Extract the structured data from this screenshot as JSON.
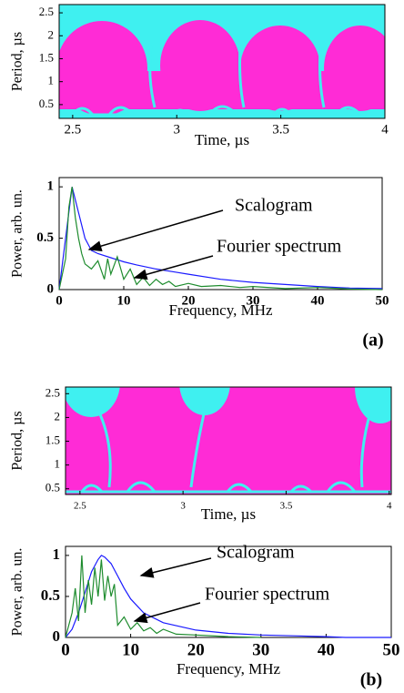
{
  "chart_data": [
    {
      "type": "heatmap",
      "xlabel": "Time, µs",
      "ylabel": "Period, µs",
      "xlim": [
        2.435,
        4
      ],
      "ylim": [
        0.2,
        2.68
      ],
      "xticks": [
        2.5,
        3,
        3.5,
        4
      ],
      "yticks": [
        0.5,
        1,
        1.5,
        2,
        2.5
      ]
    },
    {
      "type": "line",
      "xlabel": "Frequency, MHz",
      "ylabel": "Power, arb. un.",
      "label": "(a)",
      "xlim": [
        0,
        50
      ],
      "ylim": [
        0,
        1.09
      ],
      "xticks": [
        0,
        10,
        20,
        30,
        40,
        50
      ],
      "yticks": [
        0,
        0.5,
        1
      ],
      "annotations": [
        "Scalogram",
        "Fourier spectrum"
      ],
      "series": [
        {
          "name": "Scalogram",
          "color": "#1a1aff",
          "x": [
            0,
            1,
            2,
            3,
            4,
            5,
            6,
            8,
            10,
            12,
            15,
            18,
            20,
            25,
            30,
            35,
            40,
            45,
            50
          ],
          "values": [
            0,
            0.5,
            1,
            0.75,
            0.5,
            0.38,
            0.35,
            0.31,
            0.27,
            0.24,
            0.2,
            0.17,
            0.15,
            0.1,
            0.07,
            0.05,
            0.03,
            0.015,
            0.01
          ]
        },
        {
          "name": "Fourier spectrum",
          "color": "#1e8c2e",
          "x": [
            0,
            1,
            1.5,
            2,
            2.5,
            3,
            3.5,
            4,
            5,
            6,
            7,
            7.5,
            8,
            9,
            10,
            11,
            12,
            13,
            14,
            15,
            16,
            17,
            18,
            20,
            22,
            25,
            28,
            30,
            35,
            40,
            45,
            50
          ],
          "values": [
            0,
            0.3,
            0.8,
            1,
            0.7,
            0.5,
            0.35,
            0.25,
            0.2,
            0.28,
            0.1,
            0.3,
            0.15,
            0.32,
            0.1,
            0.2,
            0.05,
            0.12,
            0.04,
            0.1,
            0.05,
            0.08,
            0.03,
            0.06,
            0.03,
            0.04,
            0.02,
            0.03,
            0.01,
            0.02,
            0.005,
            0
          ]
        }
      ]
    },
    {
      "type": "heatmap",
      "xlabel": "Time, µs",
      "ylabel": "Period, µs",
      "xlim": [
        2.43,
        4.01
      ],
      "ylim": [
        0.38,
        2.64
      ],
      "xticks": [
        2.5,
        3,
        3.5,
        4
      ],
      "yticks": [
        0.5,
        1,
        1.5,
        2,
        2.5
      ]
    },
    {
      "type": "line",
      "xlabel": "Frequency, MHz",
      "ylabel": "Power, arb. un.",
      "label": "(b)",
      "xlim": [
        0,
        50
      ],
      "ylim": [
        0,
        1.11
      ],
      "xticks": [
        0,
        10,
        20,
        30,
        40,
        50
      ],
      "yticks": [
        0,
        0.5,
        1
      ],
      "annotations": [
        "Scalogram",
        "Fourier spectrum"
      ],
      "series": [
        {
          "name": "Scalogram",
          "color": "#1a1aff",
          "x": [
            0,
            1,
            2,
            3,
            4,
            5,
            5.5,
            6,
            7,
            8,
            9,
            10,
            12,
            15,
            20,
            25,
            30,
            35,
            40,
            43,
            50
          ],
          "values": [
            0,
            0.1,
            0.3,
            0.55,
            0.8,
            0.95,
            1,
            0.98,
            0.9,
            0.75,
            0.6,
            0.47,
            0.3,
            0.18,
            0.09,
            0.05,
            0.03,
            0.02,
            0.01,
            0,
            0
          ]
        },
        {
          "name": "Fourier spectrum",
          "color": "#1e8c2e",
          "x": [
            0,
            1,
            1.5,
            2,
            2.5,
            3,
            3.5,
            4,
            4.5,
            5,
            5.5,
            6,
            6.5,
            7,
            7.5,
            8,
            9,
            10,
            11,
            12,
            13,
            14,
            15,
            17,
            20,
            25,
            30
          ],
          "values": [
            0,
            0.3,
            0.6,
            0.2,
            1,
            0.3,
            0.7,
            0.4,
            0.85,
            0.5,
            0.95,
            0.45,
            0.75,
            0.5,
            0.65,
            0.15,
            0.25,
            0.1,
            0.18,
            0.08,
            0.12,
            0.05,
            0.1,
            0.04,
            0.03,
            0.01,
            0
          ]
        }
      ]
    }
  ]
}
